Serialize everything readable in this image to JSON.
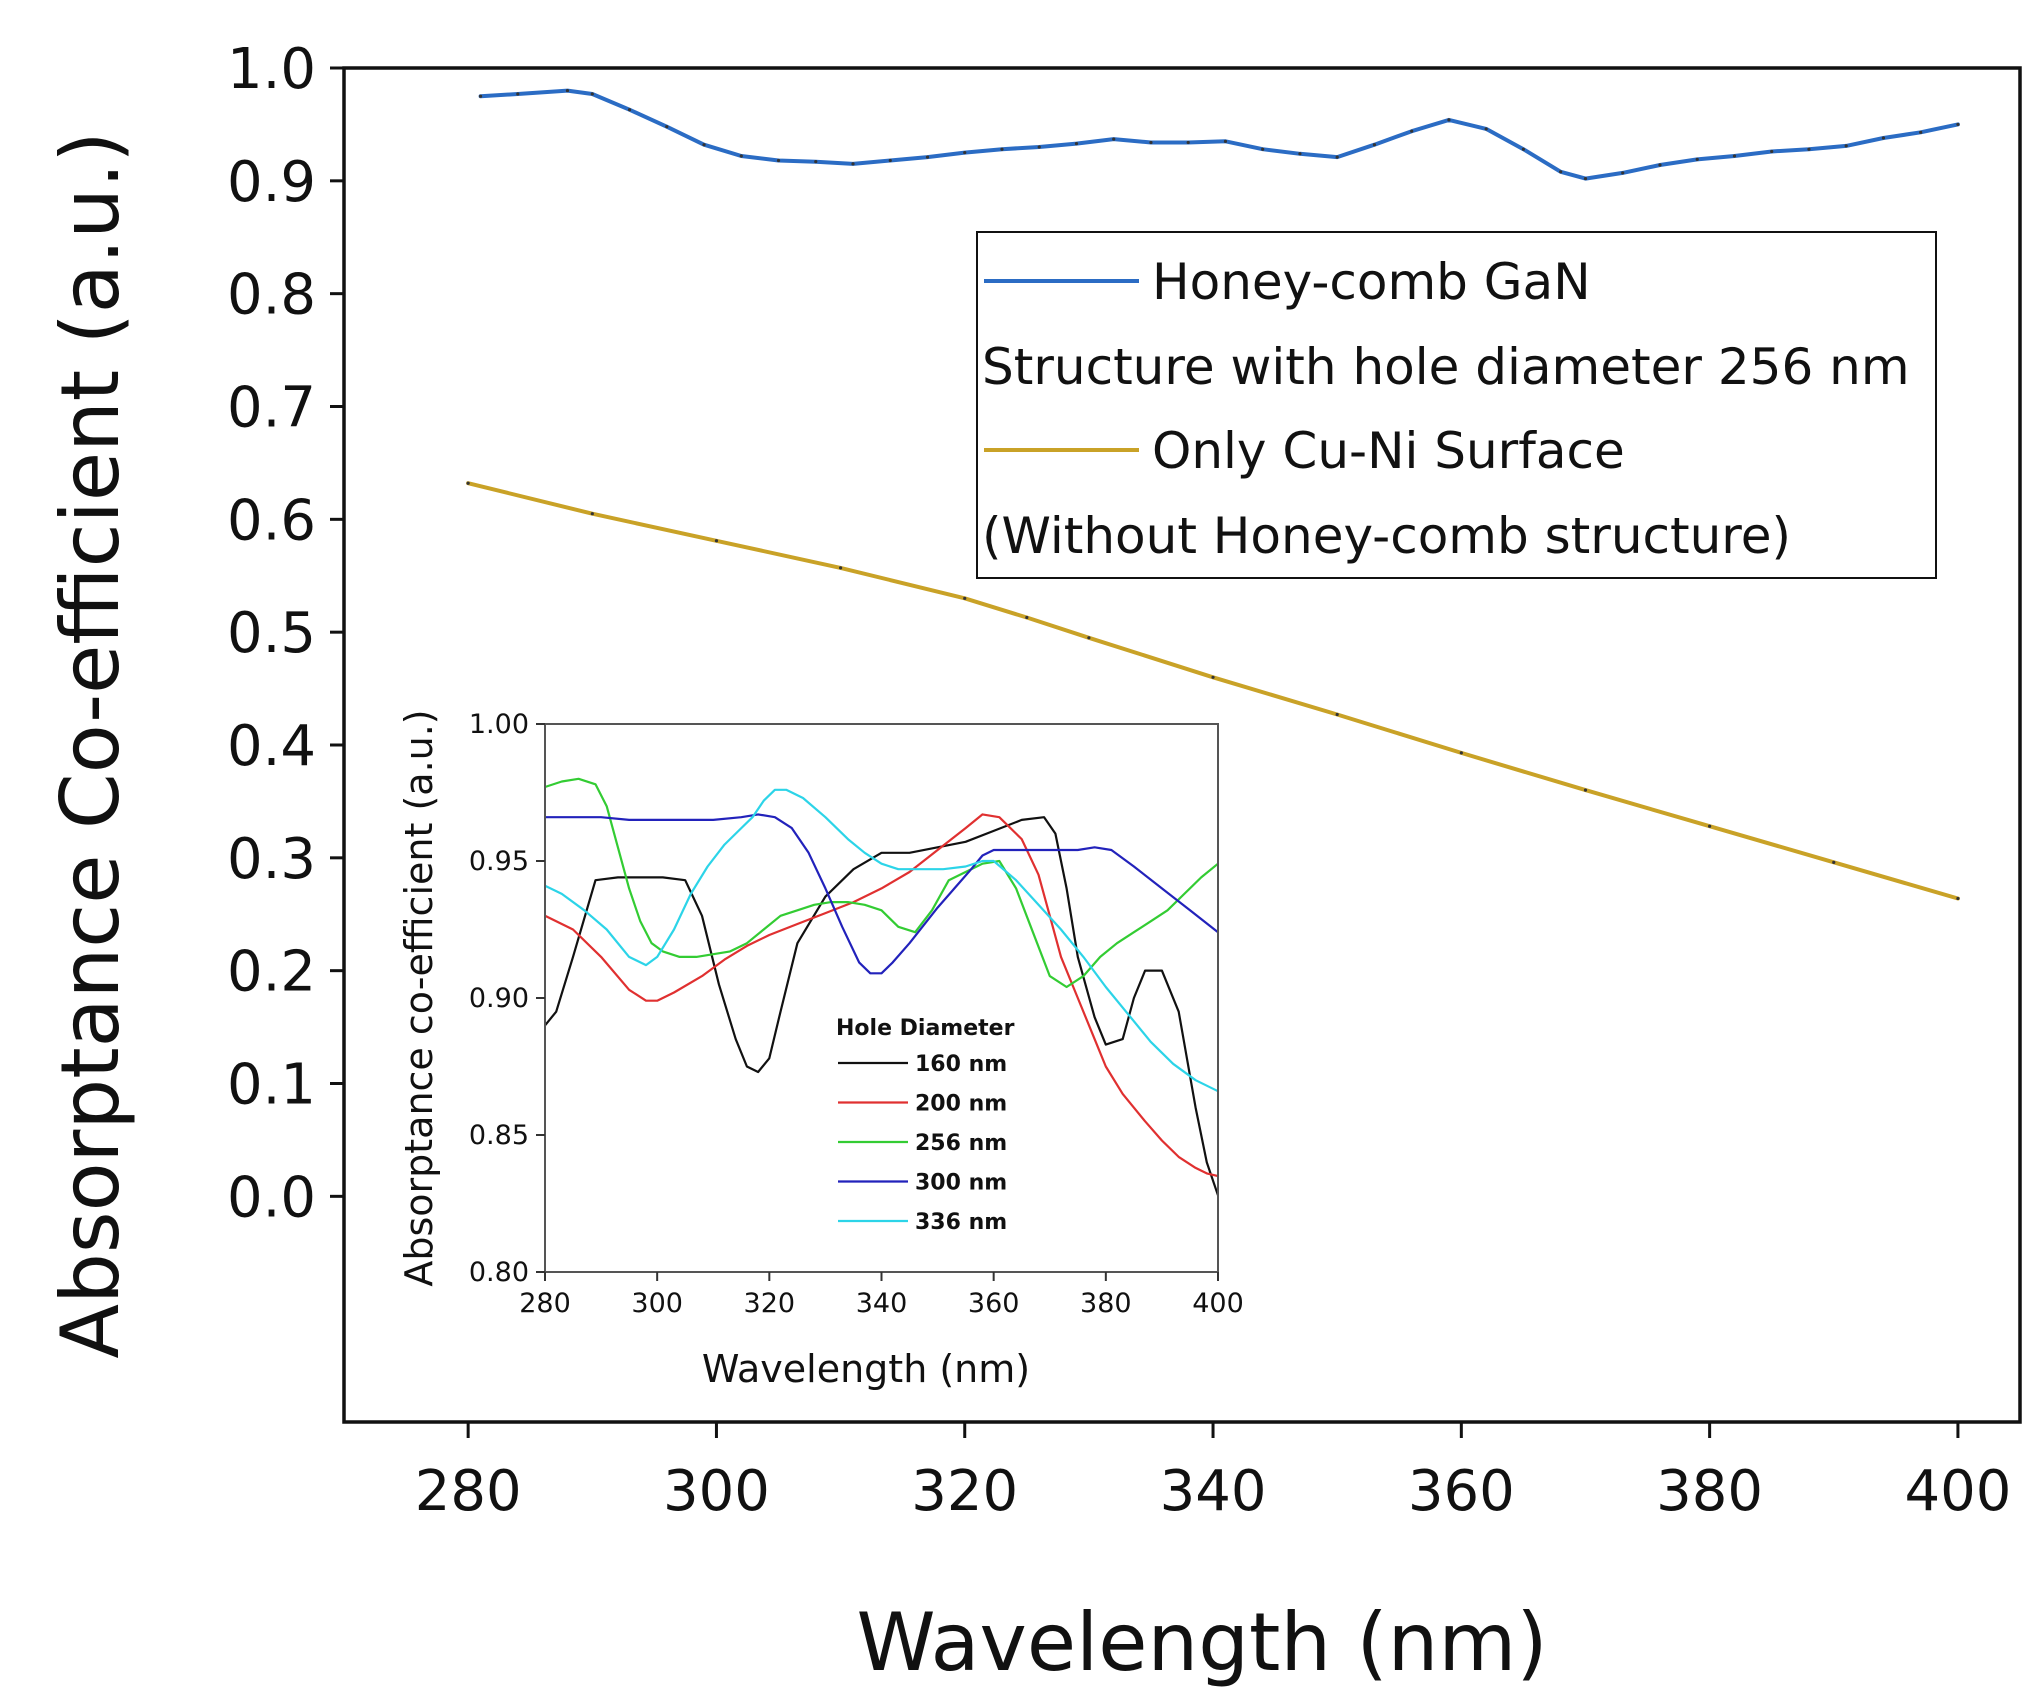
{
  "chart_data": [
    {
      "type": "line",
      "xlabel": "Wavelength (nm)",
      "ylabel": "Absorptance Co-efficient (a.u.)",
      "xlim": [
        270,
        405
      ],
      "ylim": [
        -0.2,
        1.0
      ],
      "xticks": [
        "280",
        "300",
        "320",
        "340",
        "360",
        "380",
        "400"
      ],
      "yticks": [
        "0.0",
        "0.1",
        "0.2",
        "0.3",
        "0.4",
        "0.5",
        "0.6",
        "0.7",
        "0.8",
        "0.9",
        "1.0"
      ],
      "legend": {
        "position": "top-right",
        "entries": [
          {
            "label": "Honey-comb GaN",
            "label2": "Structure with hole diameter 256 nm",
            "color": "#2b6cc4"
          },
          {
            "label": "Only Cu-Ni Surface",
            "label2": "(Without Honey-comb structure)",
            "color": "#c9a227"
          }
        ]
      },
      "series": [
        {
          "name": "Honey-comb GaN Structure with hole diameter 256 nm",
          "color": "#2b6cc4",
          "x": [
            281,
            284,
            288,
            290,
            293,
            296,
            299,
            302,
            305,
            308,
            311,
            314,
            317,
            320,
            323,
            326,
            329,
            332,
            335,
            338,
            341,
            344,
            347,
            350,
            353,
            356,
            359,
            362,
            365,
            368,
            370,
            373,
            376,
            379,
            382,
            385,
            388,
            391,
            394,
            397,
            400
          ],
          "y": [
            0.975,
            0.977,
            0.98,
            0.977,
            0.963,
            0.948,
            0.932,
            0.922,
            0.918,
            0.917,
            0.915,
            0.918,
            0.921,
            0.925,
            0.928,
            0.93,
            0.933,
            0.937,
            0.934,
            0.934,
            0.935,
            0.928,
            0.924,
            0.921,
            0.932,
            0.944,
            0.954,
            0.946,
            0.928,
            0.908,
            0.902,
            0.907,
            0.914,
            0.919,
            0.922,
            0.926,
            0.928,
            0.931,
            0.938,
            0.943,
            0.95
          ]
        },
        {
          "name": "Only Cu-Ni Surface (Without Honey-comb structure)",
          "color": "#c9a227",
          "x": [
            280,
            290,
            300,
            310,
            320,
            325,
            330,
            340,
            350,
            360,
            370,
            380,
            390,
            400
          ],
          "y": [
            0.632,
            0.605,
            0.581,
            0.557,
            0.53,
            0.513,
            0.495,
            0.46,
            0.427,
            0.393,
            0.36,
            0.328,
            0.296,
            0.264
          ]
        }
      ]
    },
    {
      "type": "line",
      "xlabel": "Wavelength (nm)",
      "ylabel": "Absorptance co-efficient (a.u.)",
      "xlim": [
        280,
        400
      ],
      "ylim": [
        0.8,
        1.0
      ],
      "xticks": [
        "280",
        "300",
        "320",
        "340",
        "360",
        "380",
        "400"
      ],
      "yticks": [
        "0.80",
        "0.85",
        "0.90",
        "0.95",
        "1.00"
      ],
      "legend": {
        "position": "center",
        "title": "Hole Diameter"
      },
      "series": [
        {
          "name": "160 nm",
          "color": "#111111",
          "x": [
            280,
            282,
            285,
            289,
            293,
            297,
            301,
            305,
            308,
            311,
            314,
            316,
            318,
            320,
            322,
            325,
            330,
            335,
            340,
            345,
            350,
            355,
            360,
            365,
            369,
            371,
            373,
            375,
            378,
            380,
            383,
            385,
            387,
            390,
            393,
            396,
            398,
            400
          ],
          "y": [
            0.89,
            0.895,
            0.915,
            0.943,
            0.944,
            0.944,
            0.944,
            0.943,
            0.93,
            0.905,
            0.885,
            0.875,
            0.873,
            0.878,
            0.895,
            0.92,
            0.937,
            0.947,
            0.953,
            0.953,
            0.955,
            0.957,
            0.961,
            0.965,
            0.966,
            0.96,
            0.94,
            0.915,
            0.893,
            0.883,
            0.885,
            0.9,
            0.91,
            0.91,
            0.895,
            0.86,
            0.84,
            0.828
          ]
        },
        {
          "name": "200 nm",
          "color": "#e03030",
          "x": [
            280,
            285,
            290,
            295,
            298,
            300,
            303,
            308,
            312,
            316,
            320,
            325,
            330,
            335,
            340,
            345,
            350,
            355,
            358,
            361,
            365,
            368,
            370,
            372,
            375,
            378,
            380,
            383,
            387,
            390,
            393,
            396,
            398,
            400
          ],
          "y": [
            0.93,
            0.925,
            0.915,
            0.903,
            0.899,
            0.899,
            0.902,
            0.908,
            0.914,
            0.919,
            0.923,
            0.927,
            0.931,
            0.935,
            0.94,
            0.946,
            0.954,
            0.962,
            0.967,
            0.966,
            0.958,
            0.945,
            0.93,
            0.915,
            0.9,
            0.885,
            0.875,
            0.865,
            0.855,
            0.848,
            0.842,
            0.838,
            0.836,
            0.835
          ]
        },
        {
          "name": "256 nm",
          "color": "#33cc33",
          "x": [
            280,
            283,
            286,
            289,
            291,
            293,
            295,
            297,
            299,
            301,
            304,
            307,
            310,
            313,
            316,
            319,
            322,
            325,
            328,
            331,
            334,
            337,
            340,
            343,
            346,
            349,
            352,
            355,
            358,
            361,
            364,
            367,
            370,
            373,
            376,
            379,
            382,
            385,
            388,
            391,
            394,
            397,
            400
          ],
          "y": [
            0.977,
            0.979,
            0.98,
            0.978,
            0.97,
            0.955,
            0.94,
            0.928,
            0.92,
            0.917,
            0.915,
            0.915,
            0.916,
            0.917,
            0.92,
            0.925,
            0.93,
            0.932,
            0.934,
            0.935,
            0.935,
            0.934,
            0.932,
            0.926,
            0.924,
            0.932,
            0.943,
            0.946,
            0.949,
            0.95,
            0.94,
            0.924,
            0.908,
            0.904,
            0.908,
            0.915,
            0.92,
            0.924,
            0.928,
            0.932,
            0.938,
            0.944,
            0.949
          ]
        },
        {
          "name": "300 nm",
          "color": "#2222bb",
          "x": [
            280,
            285,
            290,
            295,
            300,
            305,
            310,
            315,
            318,
            321,
            324,
            327,
            330,
            333,
            336,
            338,
            340,
            342,
            345,
            350,
            353,
            356,
            358,
            360,
            365,
            370,
            375,
            378,
            381,
            385,
            390,
            395,
            400
          ],
          "y": [
            0.966,
            0.966,
            0.966,
            0.965,
            0.965,
            0.965,
            0.965,
            0.966,
            0.967,
            0.966,
            0.962,
            0.953,
            0.94,
            0.926,
            0.913,
            0.909,
            0.909,
            0.913,
            0.92,
            0.933,
            0.94,
            0.947,
            0.952,
            0.954,
            0.954,
            0.954,
            0.954,
            0.955,
            0.954,
            0.948,
            0.94,
            0.932,
            0.924
          ]
        },
        {
          "name": "336 nm",
          "color": "#2cd4e8",
          "x": [
            280,
            283,
            287,
            291,
            295,
            298,
            300,
            303,
            306,
            309,
            312,
            315,
            317,
            319,
            321,
            323,
            326,
            330,
            334,
            337,
            340,
            343,
            347,
            351,
            355,
            358,
            360,
            364,
            368,
            372,
            376,
            380,
            384,
            388,
            392,
            396,
            400
          ],
          "y": [
            0.941,
            0.938,
            0.932,
            0.925,
            0.915,
            0.912,
            0.915,
            0.925,
            0.938,
            0.948,
            0.956,
            0.962,
            0.966,
            0.972,
            0.976,
            0.976,
            0.973,
            0.966,
            0.958,
            0.953,
            0.949,
            0.947,
            0.947,
            0.947,
            0.948,
            0.95,
            0.95,
            0.943,
            0.934,
            0.925,
            0.915,
            0.904,
            0.894,
            0.884,
            0.876,
            0.87,
            0.866
          ]
        }
      ]
    }
  ]
}
